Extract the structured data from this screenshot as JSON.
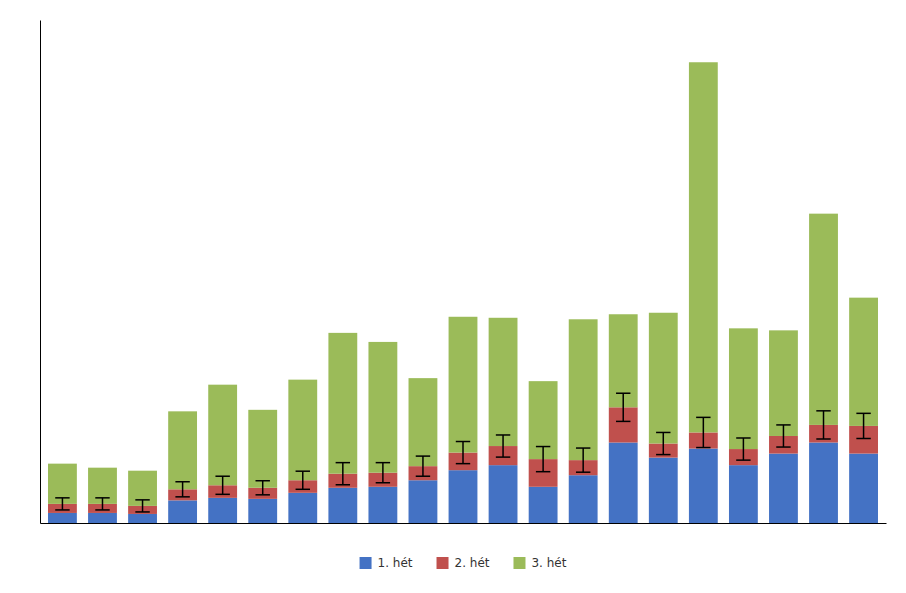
{
  "chart_data": {
    "type": "bar",
    "stacked": true,
    "categories": [
      null,
      null,
      null,
      null,
      null,
      null,
      null,
      null,
      null,
      null,
      null,
      null,
      null,
      null,
      null,
      null,
      null,
      null,
      null,
      null,
      null
    ],
    "series": [
      {
        "name": "1. hét",
        "color": "#4472C4",
        "values": [
          0.2,
          0.2,
          0.18,
          0.45,
          0.5,
          0.48,
          0.6,
          0.7,
          0.72,
          0.85,
          1.05,
          1.15,
          0.72,
          0.95,
          1.6,
          1.3,
          1.48,
          1.15,
          1.38,
          1.6,
          1.38
        ]
      },
      {
        "name": "2. hét",
        "color": "#C0504D",
        "values": [
          0.18,
          0.18,
          0.16,
          0.22,
          0.25,
          0.22,
          0.25,
          0.28,
          0.28,
          0.28,
          0.35,
          0.38,
          0.55,
          0.3,
          0.7,
          0.28,
          0.32,
          0.32,
          0.35,
          0.35,
          0.55
        ],
        "errors": [
          0.12,
          0.12,
          0.12,
          0.15,
          0.18,
          0.14,
          0.18,
          0.22,
          0.2,
          0.2,
          0.22,
          0.22,
          0.25,
          0.24,
          0.28,
          0.22,
          0.3,
          0.22,
          0.22,
          0.28,
          0.25
        ]
      },
      {
        "name": "3. hét",
        "color": "#9BBB59",
        "values": [
          0.8,
          0.72,
          0.7,
          1.55,
          2.0,
          1.55,
          2.0,
          2.8,
          2.6,
          1.75,
          2.7,
          2.55,
          1.55,
          2.8,
          1.85,
          2.6,
          7.36,
          2.4,
          2.1,
          4.2,
          2.55
        ]
      }
    ],
    "ylim": [
      0,
      10
    ],
    "yticks": [],
    "grid": false,
    "tick_labels": false,
    "legend": "bottom"
  }
}
